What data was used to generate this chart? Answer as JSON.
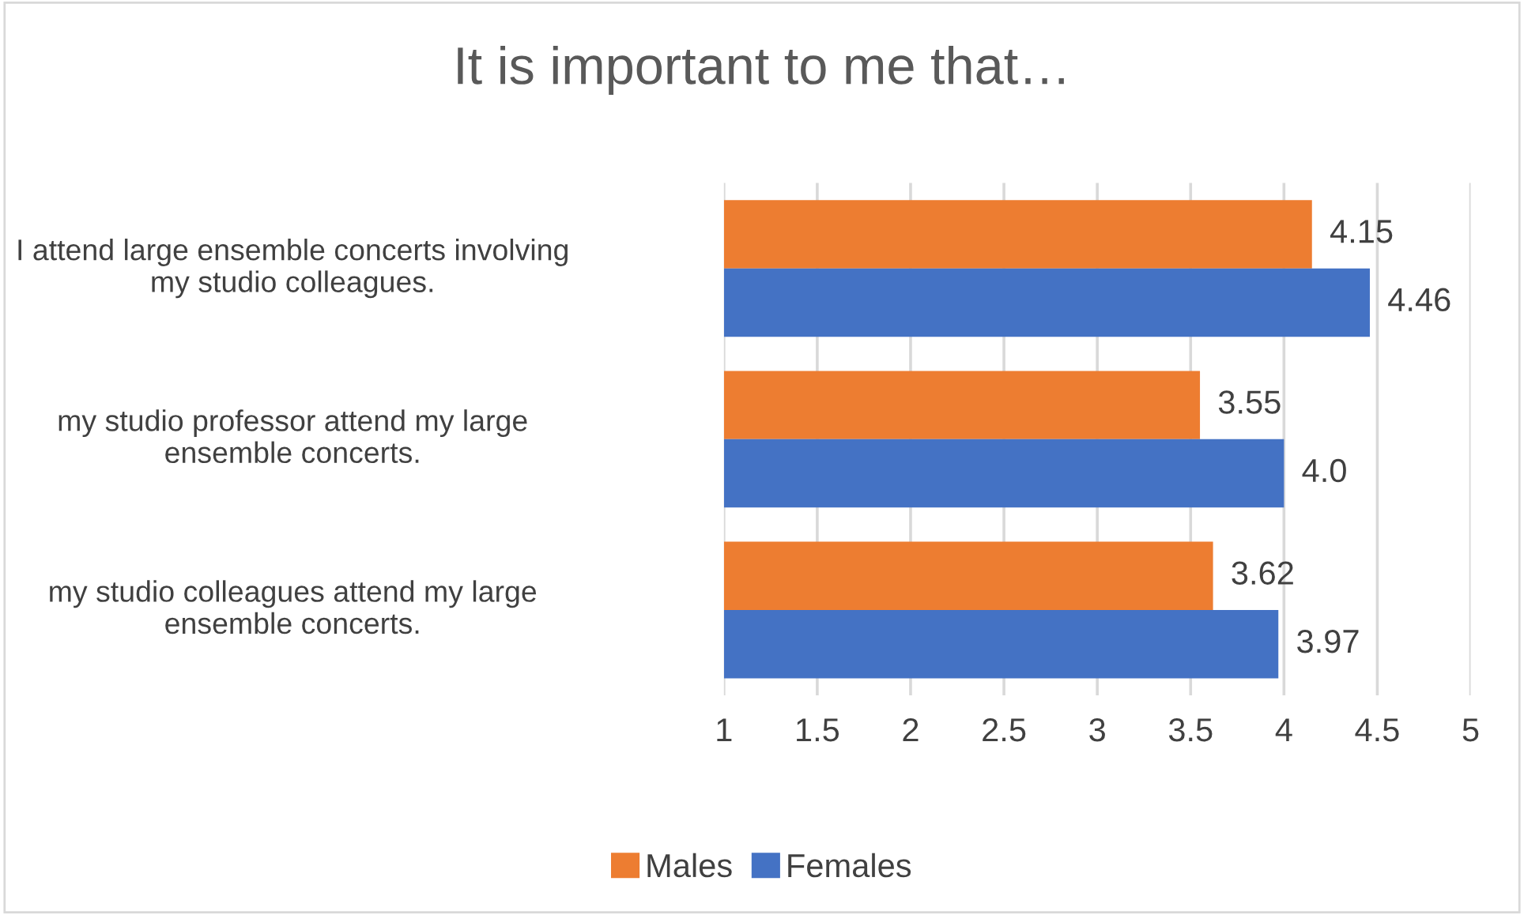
{
  "chart_data": {
    "type": "bar",
    "orientation": "horizontal",
    "title": "It is important to me that…",
    "categories": [
      "I attend large ensemble concerts involving my studio colleagues.",
      "my studio professor attend my large ensemble concerts.",
      "my studio colleagues attend my large ensemble concerts."
    ],
    "series": [
      {
        "name": "Males",
        "color": "#ed7d31",
        "values": [
          4.15,
          3.55,
          3.62
        ],
        "value_labels": [
          "4.15",
          "3.55",
          "3.62"
        ]
      },
      {
        "name": "Females",
        "color": "#4472c4",
        "values": [
          4.46,
          4.0,
          3.97
        ],
        "value_labels": [
          "4.46",
          "4.0",
          "3.97"
        ]
      }
    ],
    "xlim": [
      1,
      5
    ],
    "xticks": [
      1,
      1.5,
      2,
      2.5,
      3,
      3.5,
      4,
      4.5,
      5
    ],
    "grid": "x",
    "legend": "bottom"
  }
}
